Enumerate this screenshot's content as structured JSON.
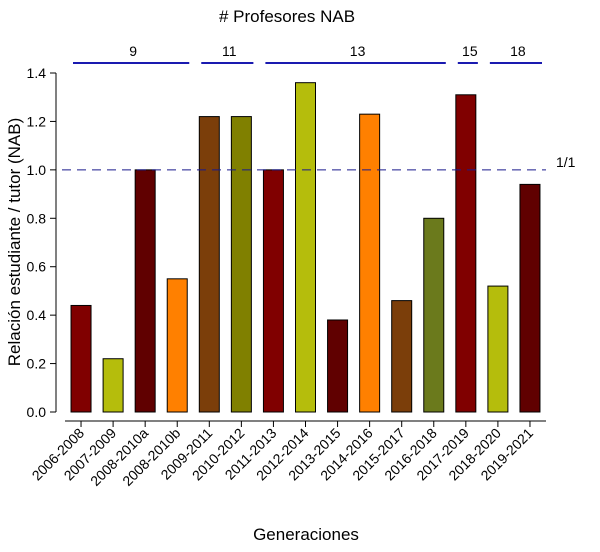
{
  "chart_data": {
    "type": "bar",
    "title": "# Profesores NAB",
    "xlabel": "Generaciones",
    "ylabel": "Relación estudiante / tutor (NAB)",
    "ylim": [
      0,
      1.4
    ],
    "yticks": [
      "0.0",
      "0.2",
      "0.4",
      "0.6",
      "0.8",
      "1.0",
      "1.2",
      "1.4"
    ],
    "categories": [
      "2006-2008",
      "2007-2009",
      "2008-2010a",
      "2008-2010b",
      "2009-2011",
      "2010-2012",
      "2011-2013",
      "2012-2014",
      "2013-2015",
      "2014-2016",
      "2015-2017",
      "2016-2018",
      "2017-2019",
      "2018-2020",
      "2019-2021"
    ],
    "values": [
      0.44,
      0.22,
      1.0,
      0.55,
      1.22,
      1.22,
      1.0,
      1.36,
      0.38,
      1.23,
      0.46,
      0.8,
      1.31,
      0.52,
      0.94
    ],
    "colors": [
      "#800000",
      "#b5bd0c",
      "#600000",
      "#ff8000",
      "#7b3e0a",
      "#808000",
      "#800000",
      "#b5bd0c",
      "#600000",
      "#ff8000",
      "#7b3e0a",
      "#6b7a1c",
      "#800000",
      "#b5bd0c",
      "#600000"
    ],
    "reference_line": {
      "y": 1.0,
      "label": "1/1",
      "color": "#1a1a8c"
    },
    "groups": [
      {
        "label": "9",
        "start": 0,
        "end": 3
      },
      {
        "label": "11",
        "start": 4,
        "end": 5
      },
      {
        "label": "13",
        "start": 6,
        "end": 11
      },
      {
        "label": "15",
        "start": 12,
        "end": 12
      },
      {
        "label": "18",
        "start": 13,
        "end": 14
      }
    ],
    "group_line_color": "#1a1ab0",
    "grid": false,
    "legend": "none"
  }
}
